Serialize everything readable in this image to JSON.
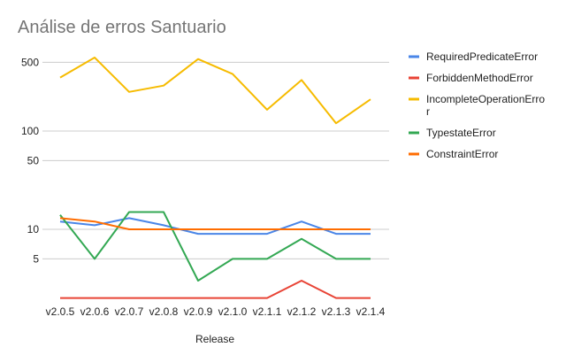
{
  "chart_data": {
    "type": "line",
    "title": "Análise de erros Santuario",
    "xlabel": "Release",
    "ylabel": "",
    "y_scale": "log",
    "ylim": [
      1.5,
      700
    ],
    "y_ticks": [
      5,
      10,
      50,
      100,
      500
    ],
    "grid": true,
    "legend_position": "right",
    "categories": [
      "v2.0.5",
      "v2.0.6",
      "v2.0.7",
      "v2.0.8",
      "v2.0.9",
      "v2.1.0",
      "v2.1.1",
      "v2.1.2",
      "v2.1.3",
      "v2.1.4"
    ],
    "series": [
      {
        "name": "RequiredPredicateError",
        "legend_lines": [
          "RequiredPredicateError"
        ],
        "color": "#4a86e8",
        "values": [
          12,
          11,
          13,
          11,
          9,
          9,
          9,
          12,
          9,
          9
        ]
      },
      {
        "name": "ForbiddenMethodError",
        "legend_lines": [
          "ForbiddenMethodError"
        ],
        "color": "#e84335",
        "values": [
          2,
          2,
          2,
          2,
          2,
          2,
          2,
          3,
          2,
          2
        ]
      },
      {
        "name": "IncompleteOperationError",
        "legend_lines": [
          "IncompleteOperationErro",
          "r"
        ],
        "color": "#f6bb00",
        "values": [
          350,
          560,
          250,
          290,
          540,
          380,
          165,
          330,
          120,
          210
        ]
      },
      {
        "name": "TypestateError",
        "legend_lines": [
          "TypestateError"
        ],
        "color": "#33a853",
        "values": [
          14,
          5,
          15,
          15,
          3,
          5,
          5,
          8,
          5,
          5
        ]
      },
      {
        "name": "ConstraintError",
        "legend_lines": [
          "ConstraintError"
        ],
        "color": "#ff6d01",
        "values": [
          13,
          12,
          10,
          10,
          10,
          10,
          10,
          10,
          10,
          10
        ]
      }
    ]
  },
  "colors": {
    "title": "#757575",
    "grid": "#cccccc",
    "text": "#222222"
  }
}
